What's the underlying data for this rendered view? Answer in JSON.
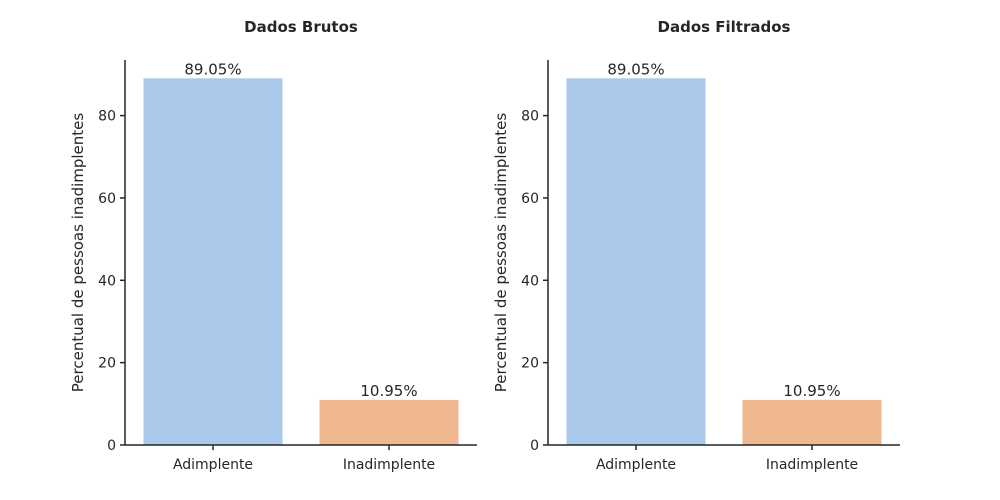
{
  "chart_data": [
    {
      "type": "bar",
      "title": "Dados Brutos",
      "xlabel": "",
      "ylabel": "Percentual de pessoas inadimplentes",
      "categories": [
        "Adimplente",
        "Inadimplente"
      ],
      "values": [
        89.05,
        10.95
      ],
      "data_labels": [
        "89.05%",
        "10.95%"
      ],
      "colors": [
        "#abc9ea",
        "#f0b890"
      ],
      "ylim": [
        0,
        93.5
      ],
      "yticks": [
        0,
        20,
        40,
        60,
        80
      ],
      "grid": false,
      "legend": "none"
    },
    {
      "type": "bar",
      "title": "Dados Filtrados",
      "xlabel": "",
      "ylabel": "Percentual de pessoas inadimplentes",
      "categories": [
        "Adimplente",
        "Inadimplente"
      ],
      "values": [
        89.05,
        10.95
      ],
      "data_labels": [
        "89.05%",
        "10.95%"
      ],
      "colors": [
        "#abc9ea",
        "#f0b890"
      ],
      "ylim": [
        0,
        93.5
      ],
      "yticks": [
        0,
        20,
        40,
        60,
        80
      ],
      "grid": false,
      "legend": "none"
    }
  ]
}
